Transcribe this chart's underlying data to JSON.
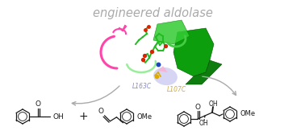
{
  "title": "engineered aldolase",
  "title_color": "#aaaaaa",
  "title_fontsize": 10.5,
  "background_color": "#ffffff",
  "label_L163C": "L163C",
  "label_L107C": "L107C",
  "label_color_L163C": "#8888cc",
  "label_color_L107C": "#ccaa44",
  "arrow_color": "#aaaaaa",
  "fig_width": 3.78,
  "fig_height": 1.68,
  "dpi": 100,
  "bond_lw": 0.9,
  "bond_color": "#1a1a1a"
}
